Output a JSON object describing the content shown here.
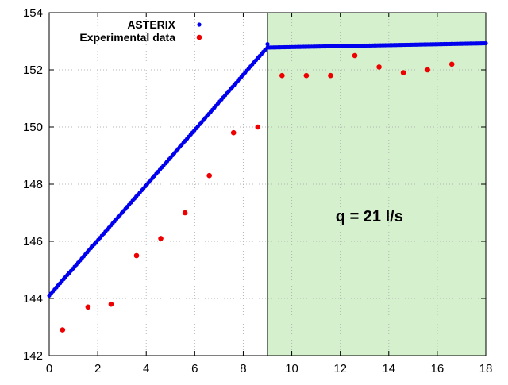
{
  "chart_data": {
    "type": "scatter",
    "xlim": [
      0,
      18
    ],
    "ylim": [
      142,
      154
    ],
    "xticks": [
      0,
      2,
      4,
      6,
      8,
      10,
      12,
      14,
      16,
      18
    ],
    "yticks": [
      142,
      144,
      146,
      148,
      150,
      152,
      154
    ],
    "grid": true,
    "legend_position": "top-center",
    "shaded_region": {
      "x_start": 9,
      "x_end": 18,
      "color": "#d4f0cc"
    },
    "annotation": {
      "text": "q = 21 l/s",
      "x": 13.2,
      "y": 146.7
    },
    "colors": {
      "asterix": "#0000ee",
      "experimental": "#ee0000"
    },
    "series": [
      {
        "name": "ASTERIX",
        "color": "#0000ee",
        "segments": [
          {
            "x_start": 0.0,
            "x_end": 8.9,
            "y_start": 144.1,
            "y_end": 152.7,
            "points": 120
          },
          {
            "x_start": 9.0,
            "x_end": 18.0,
            "y_start": 152.78,
            "y_end": 152.93,
            "points": 140
          }
        ],
        "extra_points": [
          [
            9.0,
            152.9
          ]
        ]
      },
      {
        "name": "Experimental data",
        "color": "#ee0000",
        "x": [
          0.55,
          1.6,
          2.55,
          3.6,
          4.6,
          5.6,
          6.6,
          7.6,
          8.6,
          9.6,
          10.6,
          11.6,
          12.6,
          13.6,
          14.6,
          15.6,
          16.6
        ],
        "y": [
          142.9,
          143.7,
          143.8,
          145.5,
          146.1,
          147.0,
          148.3,
          149.8,
          150.0,
          151.8,
          151.8,
          151.8,
          152.5,
          152.1,
          151.9,
          152.0,
          152.2
        ]
      }
    ]
  }
}
